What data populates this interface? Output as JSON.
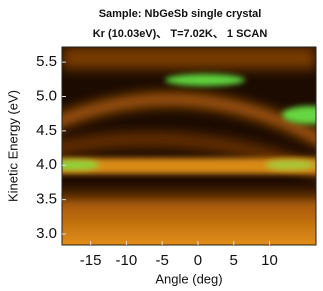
{
  "chart_data": {
    "type": "heatmap",
    "title": "Sample: NbGeSb single crystal",
    "subtitle": "Kr (10.03eV)、 T=7.02K、 1 SCAN",
    "xlabel": "Angle (deg)",
    "ylabel": "Kinetic Energy (eV)",
    "xlim": [
      -19,
      16.5
    ],
    "ylim": [
      2.84,
      5.72
    ],
    "xticks": [
      -15,
      -10,
      -5,
      0,
      5,
      10
    ],
    "yticks": [
      {
        "value": 3,
        "label": "3.0"
      },
      3.5,
      {
        "value": 4,
        "label": "4.0"
      },
      4.5,
      {
        "value": 5,
        "label": "5.0"
      },
      5.5
    ]
  }
}
